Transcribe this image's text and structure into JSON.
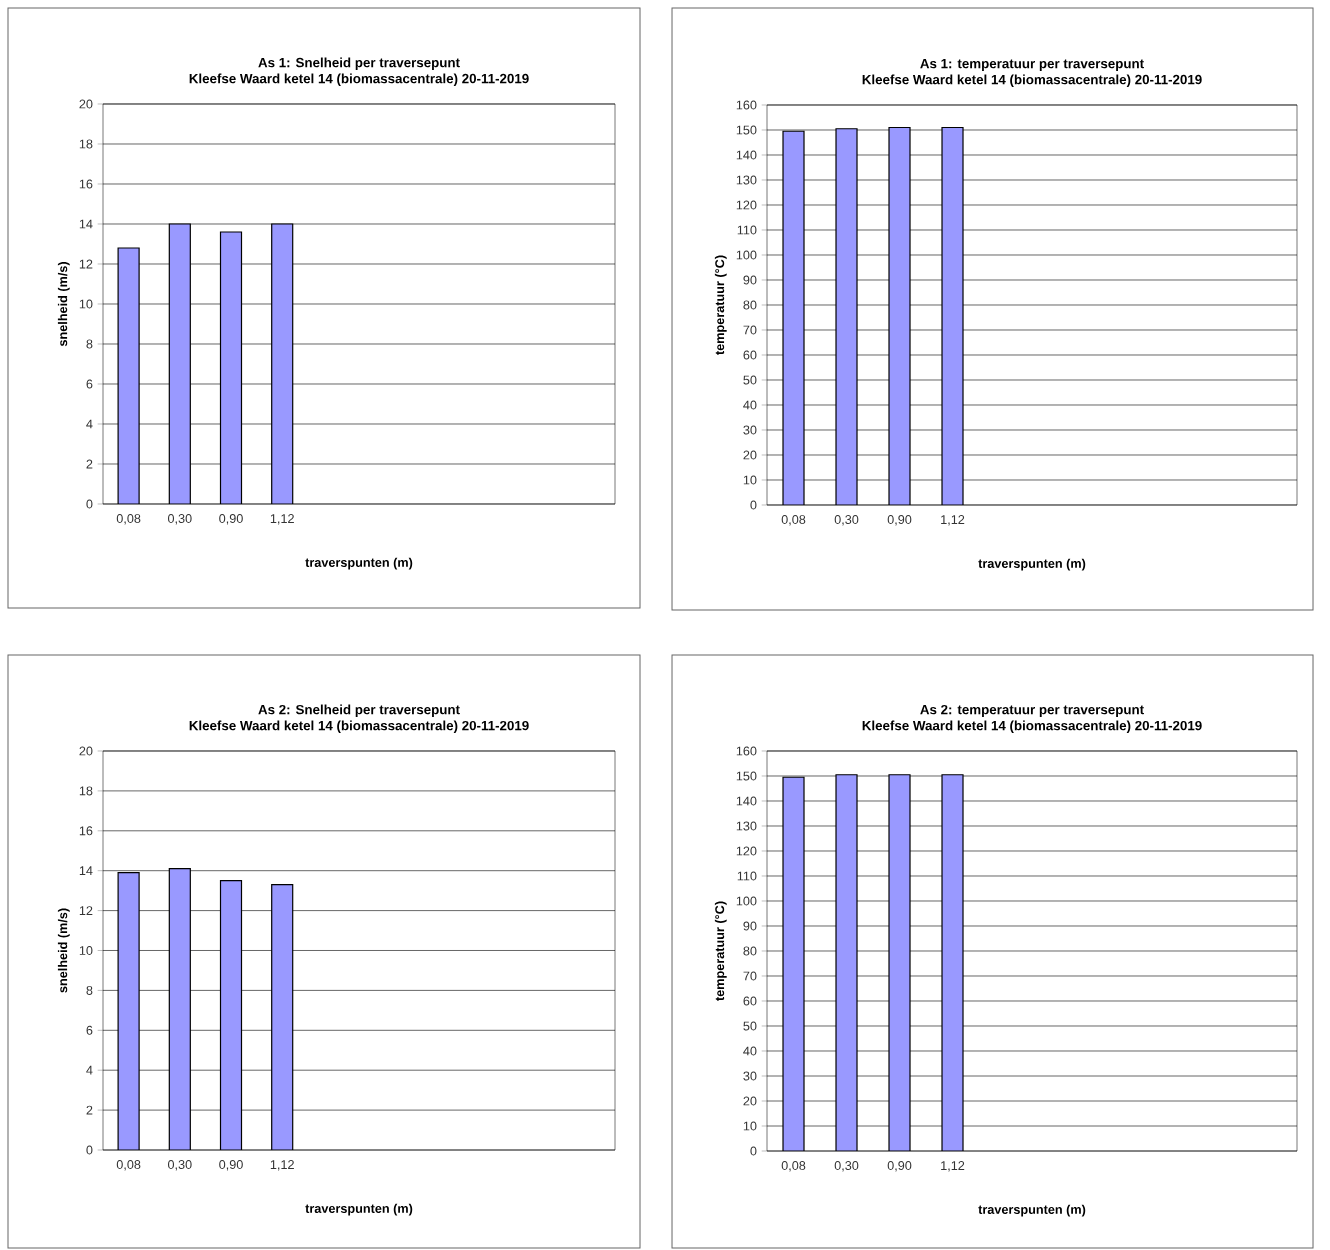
{
  "chart_data": [
    {
      "type": "bar",
      "title": "As 1: Snelheid per traversepunt",
      "subtitle": "Kleefse Waard ketel 14 (biomassacentrale) 20-11-2019",
      "xlabel": "traverspunten (m)",
      "ylabel": "snelheid (m/s)",
      "categories": [
        "0,08",
        "0,30",
        "0,90",
        "1,12",
        null,
        null,
        null,
        null,
        null,
        null
      ],
      "values": [
        12.8,
        14.0,
        13.6,
        14.0,
        null,
        null,
        null,
        null,
        null,
        null
      ],
      "color": "#9999ff",
      "ylim": [
        0,
        20
      ],
      "yticks": [
        0,
        2,
        4,
        6,
        8,
        10,
        12,
        14,
        16,
        18,
        20
      ],
      "grid": "y"
    },
    {
      "type": "bar",
      "title": "As 1: temperatuur per traversepunt",
      "subtitle": "Kleefse Waard ketel 14 (biomassacentrale) 20-11-2019",
      "xlabel": "traverspunten (m)",
      "ylabel": "temperatuur (°C)",
      "categories": [
        "0,08",
        "0,30",
        "0,90",
        "1,12",
        null,
        null,
        null,
        null,
        null,
        null
      ],
      "values": [
        149.5,
        150.5,
        151,
        151,
        null,
        null,
        null,
        null,
        null,
        null
      ],
      "color": "#9999ff",
      "ylim": [
        0,
        160
      ],
      "yticks": [
        0,
        10,
        20,
        30,
        40,
        50,
        60,
        70,
        80,
        90,
        100,
        110,
        120,
        130,
        140,
        150,
        160
      ],
      "grid": "y"
    },
    {
      "type": "bar",
      "title": "As 2: Snelheid per traversepunt",
      "subtitle": "Kleefse Waard ketel 14 (biomassacentrale) 20-11-2019",
      "xlabel": "traverspunten (m)",
      "ylabel": "snelheid (m/s)",
      "categories": [
        "0,08",
        "0,30",
        "0,90",
        "1,12",
        null,
        null,
        null,
        null,
        null,
        null
      ],
      "values": [
        13.9,
        14.1,
        13.5,
        13.3,
        null,
        null,
        null,
        null,
        null,
        null
      ],
      "color": "#9999ff",
      "ylim": [
        0,
        20
      ],
      "yticks": [
        0,
        2,
        4,
        6,
        8,
        10,
        12,
        14,
        16,
        18,
        20
      ],
      "grid": "y"
    },
    {
      "type": "bar",
      "title": "As 2: temperatuur per traversepunt",
      "subtitle": "Kleefse Waard ketel 14 (biomassacentrale) 20-11-2019",
      "xlabel": "traverspunten (m)",
      "ylabel": "temperatuur (°C)",
      "categories": [
        "0,08",
        "0,30",
        "0,90",
        "1,12",
        null,
        null,
        null,
        null,
        null,
        null
      ],
      "values": [
        149.5,
        150.5,
        150.5,
        150.5,
        null,
        null,
        null,
        null,
        null,
        null
      ],
      "color": "#9999ff",
      "ylim": [
        0,
        160
      ],
      "yticks": [
        0,
        10,
        20,
        30,
        40,
        50,
        60,
        70,
        80,
        90,
        100,
        110,
        120,
        130,
        140,
        150,
        160
      ],
      "grid": "y"
    }
  ]
}
